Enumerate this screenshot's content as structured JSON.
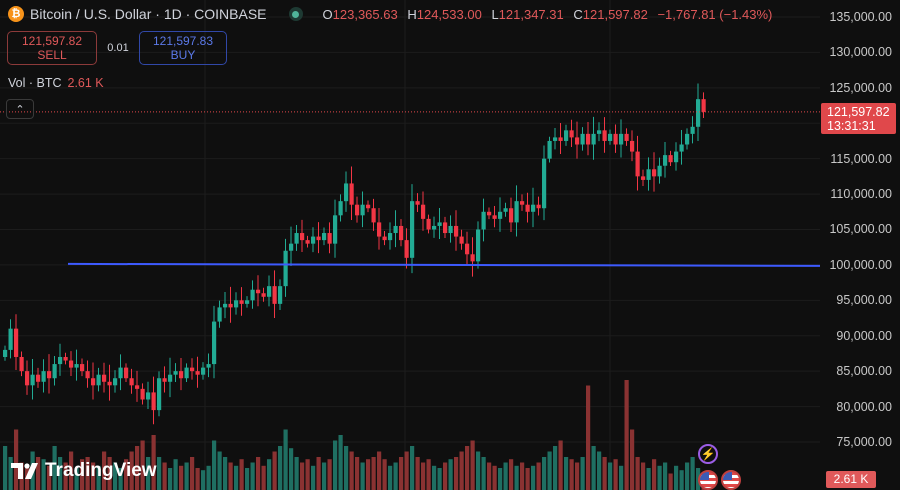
{
  "header": {
    "symbol_icon": "bitcoin-icon",
    "coin_glyph": "₿",
    "title": "Bitcoin / U.S. Dollar · 1D · COINBASE",
    "ohlc": [
      {
        "k": "O",
        "v": "123,365.63"
      },
      {
        "k": "H",
        "v": "124,533.00"
      },
      {
        "k": "L",
        "v": "121,347.31"
      },
      {
        "k": "C",
        "v": "121,597.82"
      }
    ],
    "change": "−1,767.81 (−1.43%)"
  },
  "trade": {
    "sell_price": "121,597.82",
    "sell_label": "SELL",
    "spread": "0.01",
    "buy_price": "121,597.83",
    "buy_label": "BUY"
  },
  "volume": {
    "label": "Vol · BTC",
    "value": "2.61 K"
  },
  "collapse_glyph": "⌃",
  "price_tag": {
    "price": "121,597.82",
    "countdown": "13:31:31"
  },
  "volume_tag": "2.61 K",
  "logo": "TradingView",
  "colors": {
    "up": "#22ab94",
    "down": "#f23645",
    "hline": "#3d5afe",
    "price_line": "#e0484b"
  },
  "chart_data": {
    "type": "candlestick",
    "y_axis_ticks": [
      "135,000.00",
      "130,000.00",
      "125,000.00",
      "120,000.00",
      "115,000.00",
      "110,000.00",
      "105,000.00",
      "100,000.00",
      "95,000.00",
      "90,000.00",
      "85,000.00",
      "80,000.00",
      "75,000.00"
    ],
    "y_tick_values": [
      135000,
      130000,
      125000,
      120000,
      115000,
      110000,
      105000,
      100000,
      95000,
      90000,
      85000,
      80000,
      75000
    ],
    "ylim": [
      73500,
      136500
    ],
    "horizontal_line": 100000,
    "last_price": 121597.82,
    "closes": [
      88000,
      91000,
      87000,
      85000,
      83000,
      84500,
      83500,
      85000,
      84000,
      86000,
      87000,
      86500,
      85500,
      86000,
      85000,
      84000,
      83000,
      84500,
      83500,
      83000,
      84000,
      85500,
      84000,
      83000,
      82500,
      81000,
      82000,
      79500,
      84000,
      83500,
      84500,
      85000,
      84000,
      85500,
      85000,
      84500,
      85500,
      86000,
      92000,
      94000,
      94500,
      94000,
      95000,
      94500,
      95000,
      96500,
      96000,
      95500,
      97000,
      94500,
      97000,
      102000,
      103000,
      104500,
      103500,
      103000,
      104000,
      103500,
      104500,
      103000,
      107000,
      109000,
      111500,
      108500,
      107000,
      108500,
      108000,
      106000,
      104000,
      103500,
      104500,
      105500,
      103500,
      101000,
      109000,
      108500,
      106500,
      105000,
      105500,
      106000,
      104500,
      105500,
      104000,
      103000,
      101500,
      100500,
      105000,
      107500,
      107000,
      106500,
      107500,
      108000,
      106000,
      109000,
      108500,
      107500,
      108500,
      108000,
      115000,
      117500,
      118000,
      117500,
      119000,
      118000,
      117000,
      118500,
      117000,
      118500,
      119000,
      117500,
      118500,
      117000,
      118500,
      117500,
      116000,
      112500,
      112000,
      113500,
      112500,
      114000,
      115500,
      114500,
      116000,
      117000,
      118500,
      119500,
      123400,
      121600
    ],
    "volumes": [
      40,
      30,
      55,
      25,
      20,
      35,
      30,
      28,
      22,
      40,
      30,
      25,
      35,
      20,
      28,
      30,
      25,
      22,
      35,
      30,
      25,
      20,
      28,
      35,
      40,
      45,
      30,
      50,
      30,
      25,
      20,
      28,
      22,
      25,
      30,
      20,
      18,
      22,
      45,
      35,
      30,
      25,
      22,
      28,
      20,
      25,
      30,
      22,
      28,
      35,
      40,
      55,
      38,
      30,
      25,
      28,
      22,
      30,
      25,
      28,
      45,
      50,
      40,
      35,
      30,
      25,
      28,
      30,
      35,
      28,
      22,
      25,
      30,
      35,
      40,
      30,
      25,
      28,
      22,
      20,
      25,
      28,
      30,
      35,
      40,
      45,
      35,
      30,
      25,
      22,
      20,
      25,
      28,
      22,
      25,
      20,
      22,
      25,
      30,
      35,
      40,
      45,
      30,
      28,
      25,
      30,
      95,
      40,
      35,
      30,
      25,
      28,
      22,
      100,
      55,
      30,
      25,
      20,
      28,
      22,
      25,
      15,
      22,
      18,
      25,
      30,
      20,
      15
    ]
  }
}
